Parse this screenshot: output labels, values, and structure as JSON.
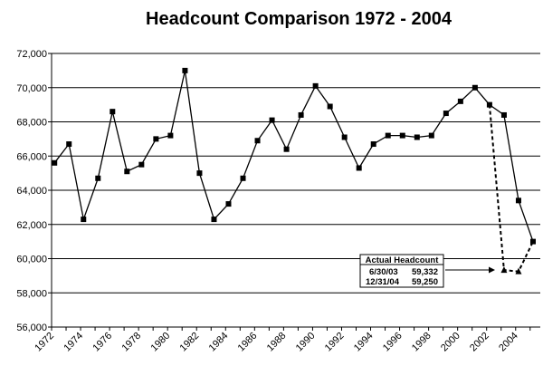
{
  "chart_data": {
    "type": "line",
    "title": "Headcount Comparison 1972 - 2004",
    "xlabel": "",
    "ylabel": "",
    "ylim": [
      56000,
      72000
    ],
    "xlim": [
      1972,
      2005.7
    ],
    "grid": "horizontal",
    "y_ticks": [
      56000,
      58000,
      60000,
      62000,
      64000,
      66000,
      68000,
      70000,
      72000
    ],
    "y_tick_labels": [
      "56,000",
      "58,000",
      "60,000",
      "62,000",
      "64,000",
      "66,000",
      "68,000",
      "70,000",
      "72,000"
    ],
    "x_ticks": [
      1972,
      1974,
      1976,
      1978,
      1980,
      1982,
      1984,
      1986,
      1988,
      1990,
      1992,
      1994,
      1996,
      1998,
      2000,
      2002,
      2004
    ],
    "x_tick_labels": [
      "1972",
      "1974",
      "1976",
      "1978",
      "1980",
      "1982",
      "1984",
      "1986",
      "1988",
      "1990",
      "1992",
      "1994",
      "1996",
      "1998",
      "2000",
      "2002",
      "2004"
    ],
    "series": [
      {
        "style": "solid",
        "marker": "square",
        "x": [
          1972.2,
          1973.2,
          1974.2,
          1975.2,
          1976.2,
          1977.2,
          1978.2,
          1979.2,
          1980.2,
          1981.2,
          1982.2,
          1983.2,
          1984.2,
          1985.2,
          1986.2,
          1987.2,
          1988.2,
          1989.2,
          1990.2,
          1991.2,
          1992.2,
          1993.2,
          1994.2,
          1995.2,
          1996.2,
          1997.2,
          1998.2,
          1999.2,
          2000.2,
          2001.2,
          2002.2,
          2003.2,
          2004.2,
          2005.2
        ],
        "y": [
          65600,
          66700,
          62300,
          64700,
          68600,
          65100,
          65500,
          67000,
          67200,
          71000,
          65000,
          62300,
          63200,
          64700,
          66900,
          68100,
          66400,
          68400,
          70100,
          68900,
          67100,
          65300,
          66700,
          67200,
          67200,
          67100,
          67200,
          68500,
          69200,
          70000,
          69000,
          68400,
          63400,
          61000
        ]
      },
      {
        "style": "dashed",
        "marker": "triangle",
        "x": [
          2002.2,
          2003.2,
          2004.2,
          2005.2
        ],
        "y": [
          69000,
          59332,
          59250,
          61000
        ]
      }
    ],
    "annotation": {
      "heading": "Actual Headcount",
      "rows": [
        {
          "date": "6/30/03",
          "value": "59,332"
        },
        {
          "date": "12/31/04",
          "value": "59,250"
        }
      ]
    }
  }
}
